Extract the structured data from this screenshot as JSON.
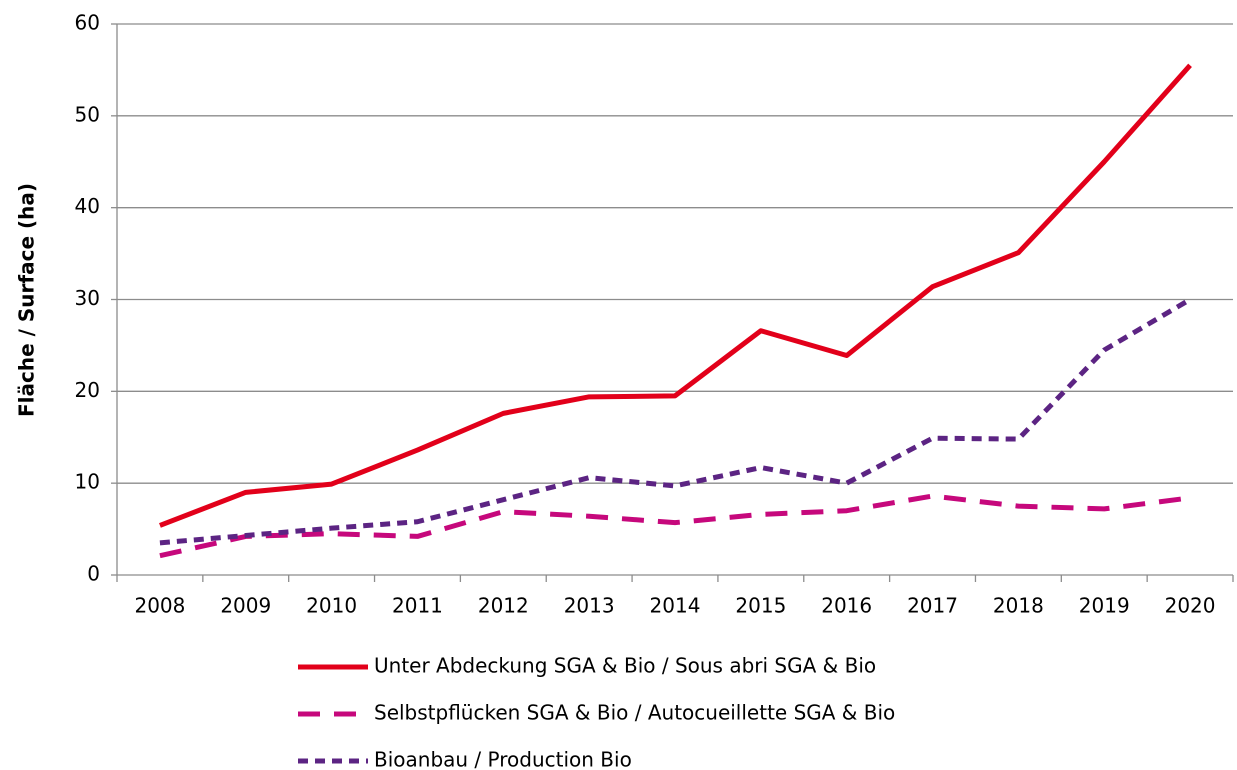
{
  "chart_data": {
    "type": "line",
    "ylabel": "Fläche / Surface (ha)",
    "categories": [
      "2008",
      "2009",
      "2010",
      "2011",
      "2012",
      "2013",
      "2014",
      "2015",
      "2016",
      "2017",
      "2018",
      "2019",
      "2020"
    ],
    "series": [
      {
        "name": "Unter Abdeckung SGA & Bio / Sous abri SGA & Bio",
        "color": "#e2001a",
        "dash": "solid",
        "values": [
          5.4,
          9.0,
          9.9,
          13.6,
          17.6,
          19.4,
          19.5,
          26.6,
          23.9,
          31.4,
          35.1,
          45.0,
          55.5
        ]
      },
      {
        "name": "Selbstpflücken SGA & Bio / Autocueillette SGA & Bio",
        "color": "#c6087c",
        "dash": "long",
        "values": [
          2.1,
          4.2,
          4.5,
          4.2,
          6.9,
          6.4,
          5.7,
          6.6,
          7.0,
          8.6,
          7.5,
          7.2,
          8.4
        ]
      },
      {
        "name": "Bioanbau / Production Bio",
        "color": "#5c2483",
        "dash": "short",
        "values": [
          3.5,
          4.3,
          5.1,
          5.8,
          8.2,
          10.6,
          9.7,
          11.7,
          10.0,
          14.9,
          14.8,
          24.5,
          30.0
        ]
      }
    ],
    "ylim": [
      0,
      60
    ],
    "yticks": [
      0,
      10,
      20,
      30,
      40,
      50,
      60
    ],
    "grid": true,
    "legend": "bottom"
  }
}
